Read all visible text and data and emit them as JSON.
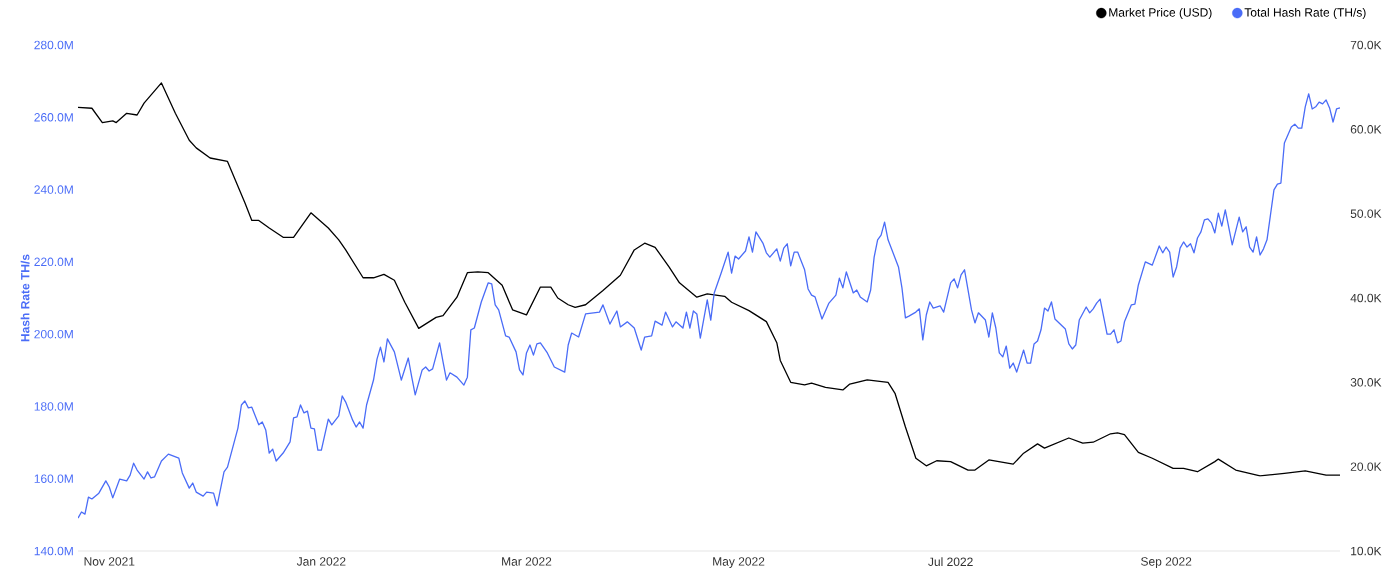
{
  "chart_data": {
    "type": "line",
    "ylabel": "Hash Rate TH/s",
    "xticks": [
      {
        "value": "2021-11-01",
        "label": "Nov 2021"
      },
      {
        "value": "2022-01-01",
        "label": "Jan 2022"
      },
      {
        "value": "2022-03-01",
        "label": "Mar 2022"
      },
      {
        "value": "2022-05-01",
        "label": "May 2022"
      },
      {
        "value": "2022-07-01",
        "label": "Jul 2022"
      },
      {
        "value": "2022-09-01",
        "label": "Sep 2022"
      }
    ],
    "xlim": [
      "2021-10-23",
      "2022-10-21"
    ],
    "ylim": [
      140,
      280
    ],
    "yticks": [
      {
        "value": 140,
        "label": "140.0M"
      },
      {
        "value": 160,
        "label": "160.0M"
      },
      {
        "value": 180,
        "label": "180.0M"
      },
      {
        "value": 200,
        "label": "200.0M"
      },
      {
        "value": 220,
        "label": "220.0M"
      },
      {
        "value": 240,
        "label": "240.0M"
      },
      {
        "value": 260,
        "label": "260.0M"
      },
      {
        "value": 280,
        "label": "280.0M"
      }
    ],
    "y2lim": [
      10,
      70
    ],
    "y2ticks": [
      {
        "value": 10,
        "label": "10.0K"
      },
      {
        "value": 20,
        "label": "20.0K"
      },
      {
        "value": 30,
        "label": "30.0K"
      },
      {
        "value": 40,
        "label": "40.0K"
      },
      {
        "value": 50,
        "label": "50.0K"
      },
      {
        "value": 60,
        "label": "60.0K"
      },
      {
        "value": 70,
        "label": "70.0K"
      }
    ],
    "legend": "top right",
    "series": [
      {
        "name": "Market Price (USD)",
        "color": "#000000",
        "axis": "y2",
        "x": [
          "2021-10-23",
          "2021-10-27",
          "2021-10-30",
          "2021-11-02",
          "2021-11-03",
          "2021-11-06",
          "2021-11-09",
          "2021-11-11",
          "2021-11-16",
          "2021-11-20",
          "2021-11-24",
          "2021-11-26",
          "2021-11-30",
          "2021-12-05",
          "2021-12-10",
          "2021-12-12",
          "2021-12-14",
          "2021-12-17",
          "2021-12-21",
          "2021-12-24",
          "2021-12-29",
          "2022-01-03",
          "2022-01-06",
          "2022-01-08",
          "2022-01-13",
          "2022-01-16",
          "2022-01-19",
          "2022-01-22",
          "2022-01-25",
          "2022-01-29",
          "2022-02-03",
          "2022-02-05",
          "2022-02-09",
          "2022-02-12",
          "2022-02-15",
          "2022-02-18",
          "2022-02-22",
          "2022-02-25",
          "2022-03-01",
          "2022-03-05",
          "2022-03-08",
          "2022-03-10",
          "2022-03-13",
          "2022-03-15",
          "2022-03-18",
          "2022-03-23",
          "2022-03-28",
          "2022-04-01",
          "2022-04-04",
          "2022-04-07",
          "2022-04-11",
          "2022-04-14",
          "2022-04-19",
          "2022-04-22",
          "2022-04-27",
          "2022-04-29",
          "2022-05-04",
          "2022-05-09",
          "2022-05-12",
          "2022-05-13",
          "2022-05-16",
          "2022-05-20",
          "2022-05-22",
          "2022-05-26",
          "2022-05-31",
          "2022-06-02",
          "2022-06-07",
          "2022-06-13",
          "2022-06-15",
          "2022-06-18",
          "2022-06-21",
          "2022-06-24",
          "2022-06-27",
          "2022-07-01",
          "2022-07-06",
          "2022-07-08",
          "2022-07-12",
          "2022-07-19",
          "2022-07-22",
          "2022-07-26",
          "2022-07-28",
          "2022-08-04",
          "2022-08-08",
          "2022-08-11",
          "2022-08-16",
          "2022-08-18",
          "2022-08-20",
          "2022-08-24",
          "2022-08-28",
          "2022-09-03",
          "2022-09-06",
          "2022-09-10",
          "2022-09-15",
          "2022-09-16",
          "2022-09-21",
          "2022-09-28",
          "2022-10-05",
          "2022-10-11",
          "2022-10-17",
          "2022-10-21"
        ],
        "values": [
          62.6,
          62.5,
          60.8,
          61.0,
          60.8,
          61.9,
          61.7,
          63.1,
          65.5,
          61.9,
          58.7,
          57.8,
          56.6,
          56.2,
          51.3,
          49.2,
          49.2,
          48.3,
          47.2,
          47.2,
          50.1,
          48.3,
          46.9,
          45.7,
          42.4,
          42.4,
          42.8,
          42.1,
          39.5,
          36.4,
          37.7,
          37.9,
          40.1,
          43.0,
          43.1,
          43.0,
          41.5,
          38.6,
          38.0,
          41.3,
          41.3,
          40.0,
          39.2,
          38.9,
          39.2,
          40.9,
          42.7,
          45.7,
          46.5,
          46.0,
          43.7,
          41.8,
          40.1,
          40.5,
          40.2,
          39.5,
          38.5,
          37.2,
          34.7,
          32.6,
          30.0,
          29.7,
          29.9,
          29.4,
          29.1,
          29.8,
          30.3,
          30.0,
          28.7,
          24.7,
          21.0,
          20.1,
          20.7,
          20.6,
          19.6,
          19.6,
          20.8,
          20.3,
          21.6,
          22.7,
          22.2,
          23.4,
          22.8,
          22.9,
          23.9,
          24.0,
          23.8,
          21.7,
          21.0,
          19.8,
          19.8,
          19.4,
          20.6,
          20.9,
          19.6,
          18.9,
          19.2,
          19.5,
          19.0,
          19.0
        ]
      },
      {
        "name": "Total Hash Rate (TH/s)",
        "color": "#4a6cf7",
        "axis": "y",
        "x": [
          "2021-10-23",
          "2021-10-24",
          "2021-10-25",
          "2021-10-26",
          "2021-10-27",
          "2021-10-29",
          "2021-10-31",
          "2021-11-01",
          "2021-11-02",
          "2021-11-04",
          "2021-11-06",
          "2021-11-07",
          "2021-11-08",
          "2021-11-09",
          "2021-11-11",
          "2021-11-12",
          "2021-11-13",
          "2021-11-14",
          "2021-11-16",
          "2021-11-18",
          "2021-11-21",
          "2021-11-22",
          "2021-11-24",
          "2021-11-25",
          "2021-11-26",
          "2021-11-28",
          "2021-11-29",
          "2021-12-01",
          "2021-12-02",
          "2021-12-04",
          "2021-12-05",
          "2021-12-08",
          "2021-12-09",
          "2021-12-10",
          "2021-12-11",
          "2021-12-12",
          "2021-12-14",
          "2021-12-15",
          "2021-12-16",
          "2021-12-17",
          "2021-12-18",
          "2021-12-19",
          "2021-12-21",
          "2021-12-23",
          "2021-12-24",
          "2021-12-25",
          "2021-12-26",
          "2021-12-27",
          "2021-12-28",
          "2021-12-29",
          "2021-12-30",
          "2021-12-31",
          "2022-01-01",
          "2022-01-03",
          "2022-01-04",
          "2022-01-06",
          "2022-01-07",
          "2022-01-08",
          "2022-01-10",
          "2022-01-11",
          "2022-01-12",
          "2022-01-13",
          "2022-01-14",
          "2022-01-16",
          "2022-01-17",
          "2022-01-18",
          "2022-01-19",
          "2022-01-20",
          "2022-01-22",
          "2022-01-24",
          "2022-01-26",
          "2022-01-27",
          "2022-01-28",
          "2022-01-30",
          "2022-01-31",
          "2022-02-01",
          "2022-02-02",
          "2022-02-04",
          "2022-02-05",
          "2022-02-06",
          "2022-02-07",
          "2022-02-09",
          "2022-02-11",
          "2022-02-12",
          "2022-02-13",
          "2022-02-14",
          "2022-02-16",
          "2022-02-18",
          "2022-02-19",
          "2022-02-20",
          "2022-02-21",
          "2022-02-23",
          "2022-02-24",
          "2022-02-26",
          "2022-02-27",
          "2022-02-28",
          "2022-03-01",
          "2022-03-02",
          "2022-03-03",
          "2022-03-04",
          "2022-03-05",
          "2022-03-07",
          "2022-03-09",
          "2022-03-12",
          "2022-03-13",
          "2022-03-14",
          "2022-03-16",
          "2022-03-18",
          "2022-03-22",
          "2022-03-23",
          "2022-03-25",
          "2022-03-27",
          "2022-03-28",
          "2022-03-30",
          "2022-04-01",
          "2022-04-03",
          "2022-04-04",
          "2022-04-06",
          "2022-04-07",
          "2022-04-09",
          "2022-04-10",
          "2022-04-12",
          "2022-04-13",
          "2022-04-15",
          "2022-04-16",
          "2022-04-17",
          "2022-04-18",
          "2022-04-19",
          "2022-04-20",
          "2022-04-22",
          "2022-04-23",
          "2022-04-24",
          "2022-04-26",
          "2022-04-28",
          "2022-04-29",
          "2022-04-30",
          "2022-05-01",
          "2022-05-03",
          "2022-05-04",
          "2022-05-05",
          "2022-05-06",
          "2022-05-08",
          "2022-05-09",
          "2022-05-10",
          "2022-05-12",
          "2022-05-13",
          "2022-05-14",
          "2022-05-15",
          "2022-05-16",
          "2022-05-17",
          "2022-05-18",
          "2022-05-20",
          "2022-05-21",
          "2022-05-22",
          "2022-05-23",
          "2022-05-25",
          "2022-05-27",
          "2022-05-29",
          "2022-05-30",
          "2022-05-31",
          "2022-06-01",
          "2022-06-03",
          "2022-06-04",
          "2022-06-05",
          "2022-06-07",
          "2022-06-08",
          "2022-06-09",
          "2022-06-10",
          "2022-06-11",
          "2022-06-12",
          "2022-06-13",
          "2022-06-16",
          "2022-06-17",
          "2022-06-18",
          "2022-06-19",
          "2022-06-21",
          "2022-06-22",
          "2022-06-23",
          "2022-06-24",
          "2022-06-25",
          "2022-06-26",
          "2022-06-28",
          "2022-06-29",
          "2022-07-01",
          "2022-07-02",
          "2022-07-03",
          "2022-07-04",
          "2022-07-05",
          "2022-07-07",
          "2022-07-08",
          "2022-07-09",
          "2022-07-11",
          "2022-07-12",
          "2022-07-13",
          "2022-07-14",
          "2022-07-15",
          "2022-07-16",
          "2022-07-17",
          "2022-07-18",
          "2022-07-19",
          "2022-07-20",
          "2022-07-22",
          "2022-07-23",
          "2022-07-24",
          "2022-07-25",
          "2022-07-26",
          "2022-07-27",
          "2022-07-28",
          "2022-07-29",
          "2022-07-30",
          "2022-07-31",
          "2022-08-03",
          "2022-08-04",
          "2022-08-05",
          "2022-08-06",
          "2022-08-07",
          "2022-08-09",
          "2022-08-10",
          "2022-08-11",
          "2022-08-12",
          "2022-08-13",
          "2022-08-15",
          "2022-08-16",
          "2022-08-17",
          "2022-08-18",
          "2022-08-19",
          "2022-08-20",
          "2022-08-22",
          "2022-08-23",
          "2022-08-24",
          "2022-08-26",
          "2022-08-28",
          "2022-08-30",
          "2022-08-31",
          "2022-09-01",
          "2022-09-02",
          "2022-09-03",
          "2022-09-04",
          "2022-09-05",
          "2022-09-06",
          "2022-09-07",
          "2022-09-08",
          "2022-09-09",
          "2022-09-10",
          "2022-09-11",
          "2022-09-12",
          "2022-09-13",
          "2022-09-14",
          "2022-09-15",
          "2022-09-16",
          "2022-09-17",
          "2022-09-18",
          "2022-09-20",
          "2022-09-22",
          "2022-09-23",
          "2022-09-24",
          "2022-09-25",
          "2022-09-26",
          "2022-09-27",
          "2022-09-28",
          "2022-09-29",
          "2022-09-30",
          "2022-10-02",
          "2022-10-03",
          "2022-10-04",
          "2022-10-05",
          "2022-10-07",
          "2022-10-08",
          "2022-10-09",
          "2022-10-10",
          "2022-10-11",
          "2022-10-12",
          "2022-10-13",
          "2022-10-14",
          "2022-10-15",
          "2022-10-16",
          "2022-10-17",
          "2022-10-18",
          "2022-10-19",
          "2022-10-20",
          "2022-10-21"
        ],
        "values": [
          149.1,
          150.8,
          150.2,
          154.9,
          154.4,
          156.0,
          159.4,
          157.7,
          154.7,
          159.9,
          159.4,
          161.0,
          164.3,
          162.4,
          159.9,
          161.9,
          160.2,
          160.5,
          164.9,
          166.8,
          165.7,
          161.6,
          157.4,
          158.8,
          156.3,
          155.2,
          156.3,
          156.0,
          152.5,
          161.9,
          163.2,
          174.0,
          180.4,
          181.5,
          179.6,
          179.8,
          174.9,
          175.7,
          173.5,
          167.1,
          168.2,
          164.9,
          167.1,
          170.2,
          176.8,
          177.1,
          180.4,
          178.2,
          178.7,
          174.0,
          173.8,
          167.9,
          167.9,
          176.5,
          174.9,
          177.4,
          182.9,
          181.2,
          176.2,
          174.3,
          175.7,
          174.0,
          180.4,
          187.3,
          193.1,
          196.4,
          192.3,
          198.7,
          195.1,
          187.3,
          193.4,
          188.1,
          183.2,
          190.1,
          190.9,
          189.8,
          190.4,
          197.6,
          192.3,
          187.3,
          189.3,
          188.1,
          185.9,
          188.1,
          201.2,
          201.7,
          208.9,
          214.2,
          213.9,
          208.1,
          206.7,
          199.5,
          199.2,
          195.1,
          190.1,
          188.7,
          194.8,
          197.0,
          194.2,
          197.3,
          197.6,
          194.8,
          190.9,
          189.5,
          197.0,
          200.3,
          199.2,
          205.6,
          206.1,
          208.1,
          202.8,
          206.4,
          202.0,
          203.4,
          201.7,
          195.6,
          199.2,
          199.5,
          203.6,
          202.5,
          206.1,
          202.0,
          203.4,
          201.7,
          206.1,
          201.7,
          206.4,
          205.6,
          198.9,
          209.5,
          203.9,
          211.4,
          216.9,
          222.7,
          216.9,
          221.6,
          220.8,
          223.0,
          226.9,
          222.7,
          228.3,
          225.2,
          222.5,
          221.3,
          223.6,
          220.2,
          223.8,
          225.0,
          218.9,
          222.7,
          222.7,
          217.8,
          212.5,
          210.8,
          210.3,
          204.2,
          208.6,
          210.8,
          215.5,
          212.8,
          217.2,
          211.4,
          212.2,
          210.3,
          208.9,
          212.2,
          221.3,
          226.1,
          227.4,
          231.0,
          226.1,
          218.6,
          212.8,
          204.5,
          205.0,
          206.1,
          207.0,
          198.4,
          205.3,
          208.9,
          207.2,
          207.8,
          206.1,
          214.2,
          215.3,
          212.8,
          216.4,
          217.8,
          206.7,
          203.1,
          205.9,
          203.9,
          199.2,
          205.9,
          201.7,
          194.8,
          193.7,
          196.7,
          190.6,
          192.0,
          189.5,
          195.6,
          192.0,
          192.0,
          197.3,
          198.1,
          201.2,
          207.2,
          206.4,
          208.9,
          204.2,
          201.4,
          197.3,
          195.9,
          197.0,
          203.9,
          207.5,
          205.9,
          207.0,
          208.6,
          209.7,
          200.0,
          200.0,
          201.2,
          197.6,
          198.1,
          203.4,
          208.1,
          208.3,
          213.6,
          220.0,
          219.1,
          224.4,
          222.5,
          224.1,
          222.7,
          215.8,
          218.6,
          223.8,
          225.5,
          224.1,
          225.0,
          222.5,
          226.6,
          228.3,
          231.6,
          231.9,
          230.8,
          228.0,
          233.5,
          229.9,
          234.4,
          224.7,
          232.4,
          228.3,
          229.7,
          224.1,
          222.7,
          226.9,
          221.9,
          223.6,
          226.1,
          239.9,
          241.5,
          241.8,
          252.9,
          257.3,
          258.1,
          257.0,
          257.0,
          262.9,
          266.5,
          262.3,
          262.9,
          264.2,
          263.7,
          264.8,
          262.6,
          258.7,
          262.3,
          262.6
        ]
      }
    ]
  }
}
